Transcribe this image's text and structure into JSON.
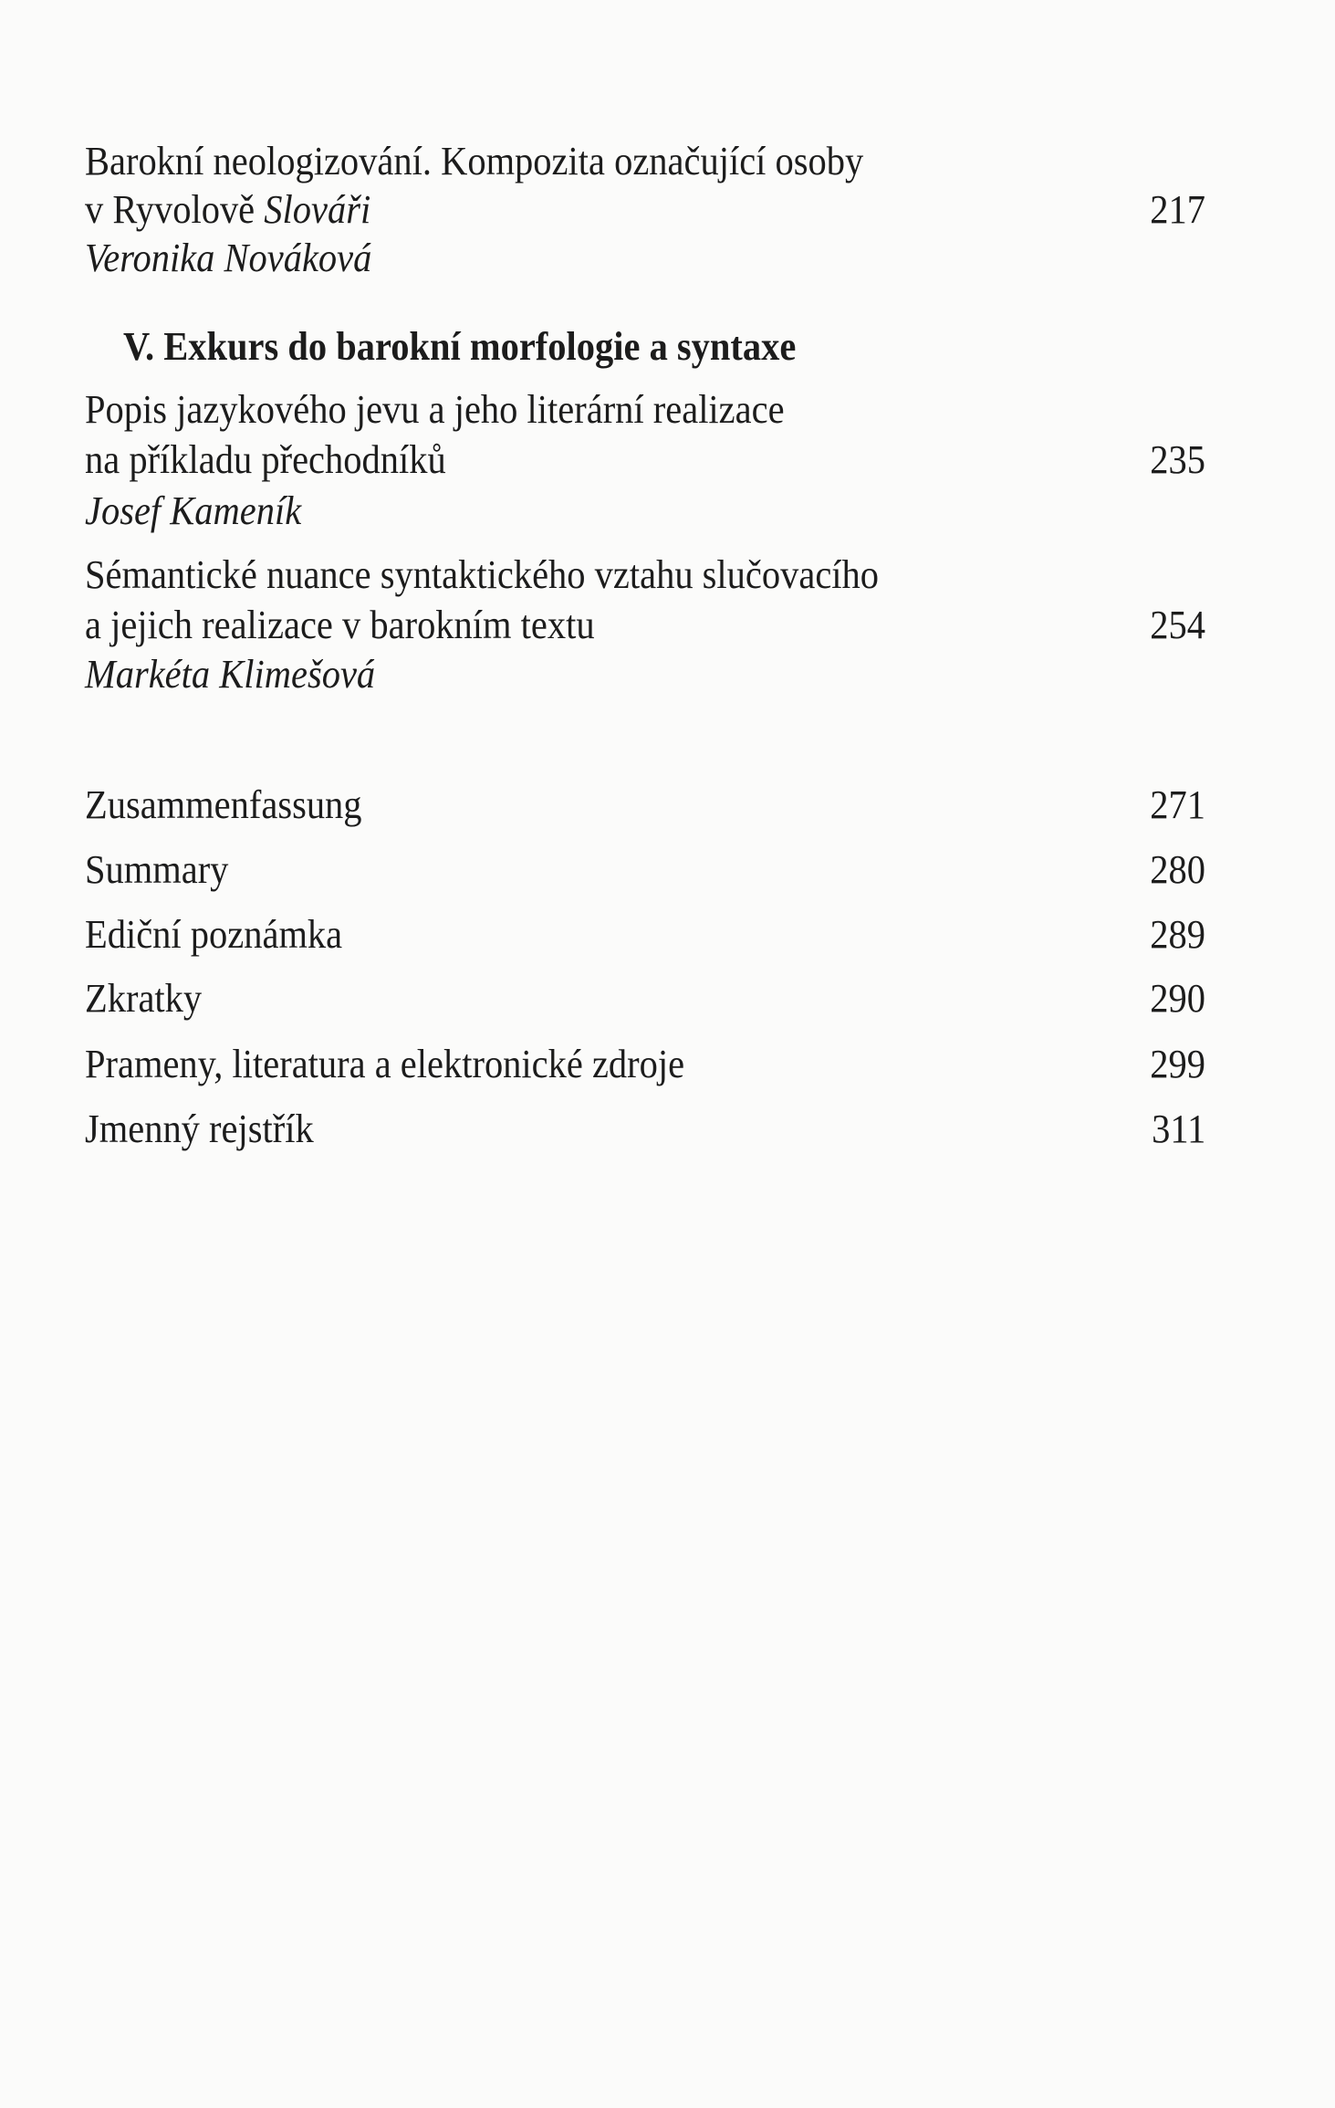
{
  "entries": [
    {
      "title_line1": "Barokní neologizování. Kompozita označující osoby",
      "title_line2_prefix": "v Ryvolově ",
      "title_line2_italic": "Slováři",
      "author": "Veronika Nováková",
      "page": "217"
    },
    {
      "section_heading": "V. Exkurs do barokní morfologie a syntaxe"
    },
    {
      "title_line1": "Popis jazykového jevu a jeho literární realizace",
      "title_line2": "na příkladu přechodníků",
      "author": "Josef Kameník",
      "page": "235"
    },
    {
      "title_line1": "Sémantické nuance syntaktického vztahu slučovacího",
      "title_line2": "a jejich realizace v barokním textu",
      "author": "Markéta Klimešová",
      "page": "254"
    }
  ],
  "appendix": [
    {
      "title": "Zusammenfassung",
      "page": "271"
    },
    {
      "title": "Summary",
      "page": "280"
    },
    {
      "title": "Ediční poznámka",
      "page": "289"
    },
    {
      "title": "Zkratky",
      "page": "290"
    },
    {
      "title": "Prameny, literatura a elektronické zdroje",
      "page": "299"
    },
    {
      "title": "Jmenný rejstřík",
      "page": "311"
    }
  ]
}
